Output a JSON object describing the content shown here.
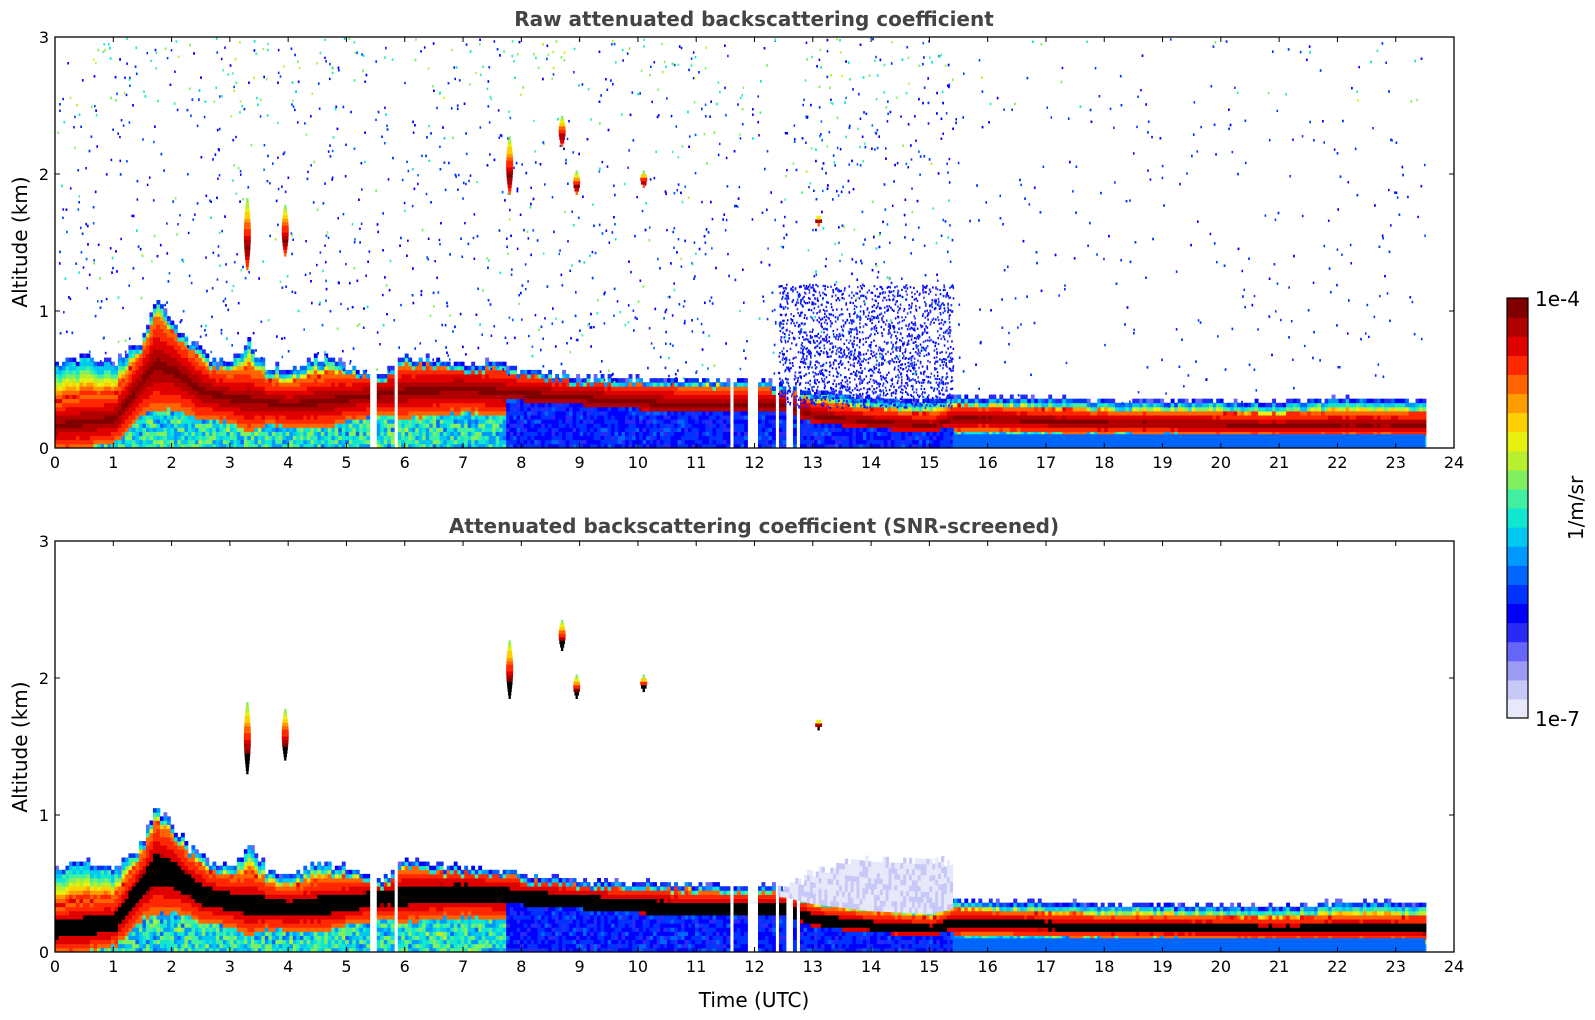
{
  "chart_data": [
    {
      "type": "heatmap",
      "title": "Raw attenuated backscattering coefficient",
      "xlabel": "",
      "ylabel": "Altitude (km)",
      "xlim": [
        0,
        24
      ],
      "ylim": [
        0,
        3
      ],
      "x_ticks": [
        "0",
        "1",
        "2",
        "3",
        "4",
        "5",
        "6",
        "7",
        "8",
        "9",
        "10",
        "11",
        "12",
        "13",
        "14",
        "15",
        "16",
        "17",
        "18",
        "19",
        "20",
        "21",
        "22",
        "23",
        "24"
      ],
      "y_ticks": [
        "0",
        "1",
        "2",
        "3"
      ],
      "boundary_layer_top_km": [
        [
          0,
          0.55
        ],
        [
          0.5,
          0.6
        ],
        [
          1,
          0.55
        ],
        [
          1.5,
          0.75
        ],
        [
          1.7,
          1.0
        ],
        [
          2,
          0.85
        ],
        [
          2.3,
          0.7
        ],
        [
          2.6,
          0.6
        ],
        [
          3,
          0.55
        ],
        [
          3.3,
          0.7
        ],
        [
          3.6,
          0.55
        ],
        [
          4,
          0.5
        ],
        [
          4.5,
          0.6
        ],
        [
          5,
          0.55
        ],
        [
          5.5,
          0.45
        ],
        [
          6,
          0.6
        ],
        [
          6.5,
          0.58
        ],
        [
          7,
          0.55
        ],
        [
          7.5,
          0.55
        ],
        [
          8,
          0.5
        ],
        [
          8.5,
          0.48
        ],
        [
          9,
          0.45
        ],
        [
          10,
          0.45
        ],
        [
          11,
          0.43
        ],
        [
          12,
          0.42
        ],
        [
          12.5,
          0.4
        ],
        [
          13,
          0.35
        ],
        [
          14,
          0.3
        ],
        [
          15,
          0.28
        ],
        [
          15.4,
          0.32
        ],
        [
          16,
          0.3
        ],
        [
          17,
          0.3
        ],
        [
          18,
          0.29
        ],
        [
          19,
          0.28
        ],
        [
          20,
          0.28
        ],
        [
          21,
          0.27
        ],
        [
          22,
          0.3
        ],
        [
          23,
          0.3
        ],
        [
          23.5,
          0.28
        ]
      ],
      "aerosol_layer_peak_km": [
        [
          0,
          0.15
        ],
        [
          1,
          0.2
        ],
        [
          1.7,
          0.6
        ],
        [
          2,
          0.55
        ],
        [
          2.5,
          0.4
        ],
        [
          3,
          0.35
        ],
        [
          4,
          0.3
        ],
        [
          5,
          0.35
        ],
        [
          6,
          0.4
        ],
        [
          7,
          0.42
        ],
        [
          8,
          0.38
        ],
        [
          9,
          0.35
        ],
        [
          10,
          0.32
        ],
        [
          11,
          0.3
        ],
        [
          12,
          0.3
        ],
        [
          12.5,
          0.3
        ],
        [
          13,
          0.22
        ],
        [
          14,
          0.18
        ],
        [
          15,
          0.15
        ],
        [
          15.4,
          0.2
        ],
        [
          16,
          0.2
        ],
        [
          17,
          0.18
        ],
        [
          18,
          0.17
        ],
        [
          19,
          0.17
        ],
        [
          20,
          0.16
        ],
        [
          21,
          0.15
        ],
        [
          22,
          0.16
        ],
        [
          23,
          0.16
        ],
        [
          23.5,
          0.15
        ]
      ],
      "cloud_features": [
        {
          "time": 7.8,
          "alt_min_km": 1.85,
          "alt_max_km": 2.25
        },
        {
          "time": 8.7,
          "alt_min_km": 2.2,
          "alt_max_km": 2.4
        },
        {
          "time": 8.95,
          "alt_min_km": 1.85,
          "alt_max_km": 2.0
        },
        {
          "time": 10.1,
          "alt_min_km": 1.9,
          "alt_max_km": 2.0
        },
        {
          "time": 13.1,
          "alt_min_km": 1.62,
          "alt_max_km": 1.68
        },
        {
          "time": 3.3,
          "alt_min_km": 1.3,
          "alt_max_km": 1.8
        },
        {
          "time": 3.95,
          "alt_min_km": 1.4,
          "alt_max_km": 1.75
        }
      ],
      "data_gaps_time": [
        5.45,
        5.85,
        11.6,
        11.9,
        12.0,
        12.4,
        12.6,
        12.75
      ],
      "noise_cutoff_time": 15.4,
      "data_end_time": 23.5
    },
    {
      "type": "heatmap",
      "title": "Attenuated backscattering coefficient (SNR-screened)",
      "xlabel": "Time (UTC)",
      "ylabel": "Altitude (km)",
      "xlim": [
        0,
        24
      ],
      "ylim": [
        0,
        3
      ],
      "x_ticks": [
        "0",
        "1",
        "2",
        "3",
        "4",
        "5",
        "6",
        "7",
        "8",
        "9",
        "10",
        "11",
        "12",
        "13",
        "14",
        "15",
        "16",
        "17",
        "18",
        "19",
        "20",
        "21",
        "22",
        "23",
        "24"
      ],
      "y_ticks": [
        "0",
        "1",
        "2",
        "3"
      ],
      "faint_layer": {
        "time_start": 12.4,
        "time_end": 15.4,
        "alt_top_km": 0.65
      }
    }
  ],
  "colorbar": {
    "label": "1/m/sr",
    "max_label": "1e-4",
    "min_label": "1e-7",
    "scale": "log",
    "range": [
      1e-07,
      0.0001
    ],
    "colors": [
      "#e8e8fb",
      "#c8c8f8",
      "#9b9bf6",
      "#6666f8",
      "#2a2af8",
      "#0000ff",
      "#0033ff",
      "#0066ff",
      "#0099ff",
      "#00c8f0",
      "#10e6d0",
      "#40f0a0",
      "#80f060",
      "#b8f030",
      "#e8f010",
      "#ffd000",
      "#ff9c00",
      "#ff6400",
      "#ff2800",
      "#e00000",
      "#b00000",
      "#800000"
    ]
  }
}
